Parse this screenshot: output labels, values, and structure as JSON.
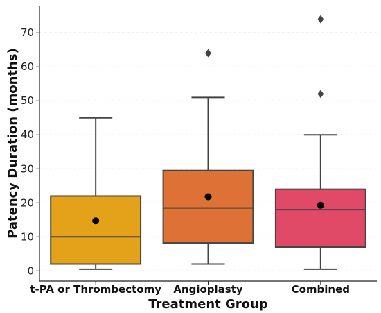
{
  "chart_data": {
    "type": "box",
    "xlabel": "Treatment Group",
    "ylabel": "Patency Duration (months)",
    "ylim": [
      -3,
      78
    ],
    "yticks": [
      0,
      10,
      20,
      30,
      40,
      50,
      60,
      70
    ],
    "grid": "y-dashed",
    "groups": [
      {
        "name": "t-PA or Thrombectomy",
        "color": "#E3A21A",
        "whisker_low": 0.5,
        "q1": 2,
        "median": 10,
        "q3": 22,
        "whisker_high": 45,
        "mean": 14.7,
        "outliers": []
      },
      {
        "name": "Angioplasty",
        "color": "#DE7135",
        "whisker_low": 2,
        "q1": 8.2,
        "median": 18.5,
        "q3": 29.5,
        "whisker_high": 51,
        "mean": 21.8,
        "outliers": [
          64
        ]
      },
      {
        "name": "Combined",
        "color": "#E04A66",
        "whisker_low": 0.5,
        "q1": 7,
        "median": 18,
        "q3": 24,
        "whisker_high": 40,
        "mean": 19.3,
        "outliers": [
          52,
          74
        ]
      }
    ]
  }
}
